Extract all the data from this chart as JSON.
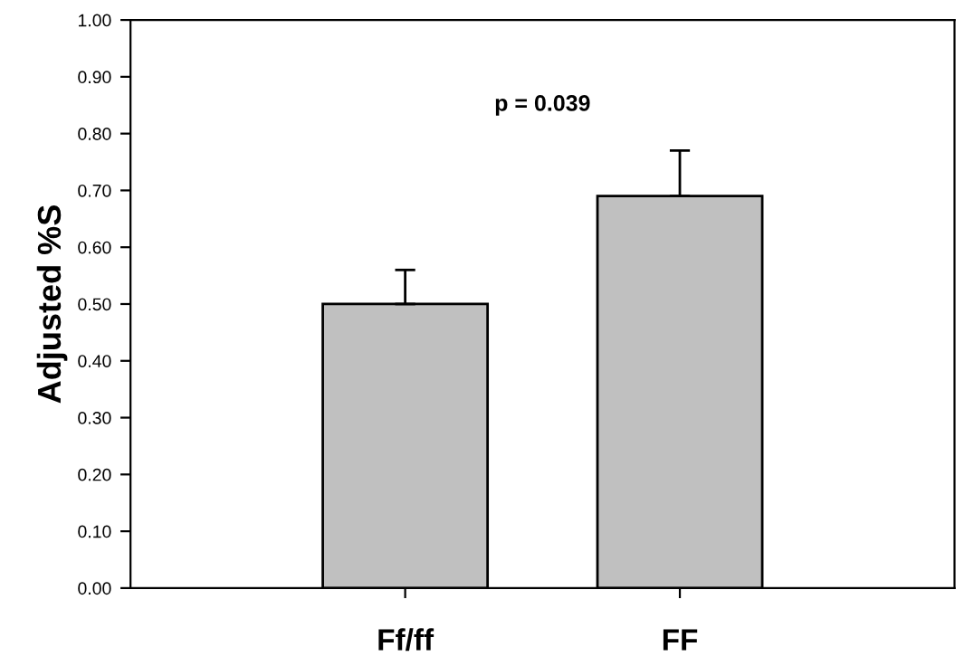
{
  "chart_data": {
    "type": "bar",
    "ylabel": "Adjusted %S",
    "categories": [
      "Ff/ff",
      "FF"
    ],
    "values": [
      0.5,
      0.69
    ],
    "errors": [
      [
        0.5,
        0.56
      ],
      [
        0.69,
        0.77
      ]
    ],
    "color": "#c0c0c0",
    "ylim": [
      0,
      1
    ],
    "yticks": [
      {
        "value": 0,
        "label": "0.00"
      },
      {
        "value": 0.1,
        "label": "0.10"
      },
      {
        "value": 0.2,
        "label": "0.20"
      },
      {
        "value": 0.3,
        "label": "0.30"
      },
      {
        "value": 0.4,
        "label": "0.40"
      },
      {
        "value": 0.5,
        "label": "0.50"
      },
      {
        "value": 0.6,
        "label": "0.60"
      },
      {
        "value": 0.7,
        "label": "0.70"
      },
      {
        "value": 0.8,
        "label": "0.80"
      },
      {
        "value": 0.9,
        "label": "0.90"
      },
      {
        "value": 1,
        "label": "1.00"
      }
    ],
    "annotations": [
      "p = 0.039"
    ],
    "grid": false,
    "legend": false
  }
}
